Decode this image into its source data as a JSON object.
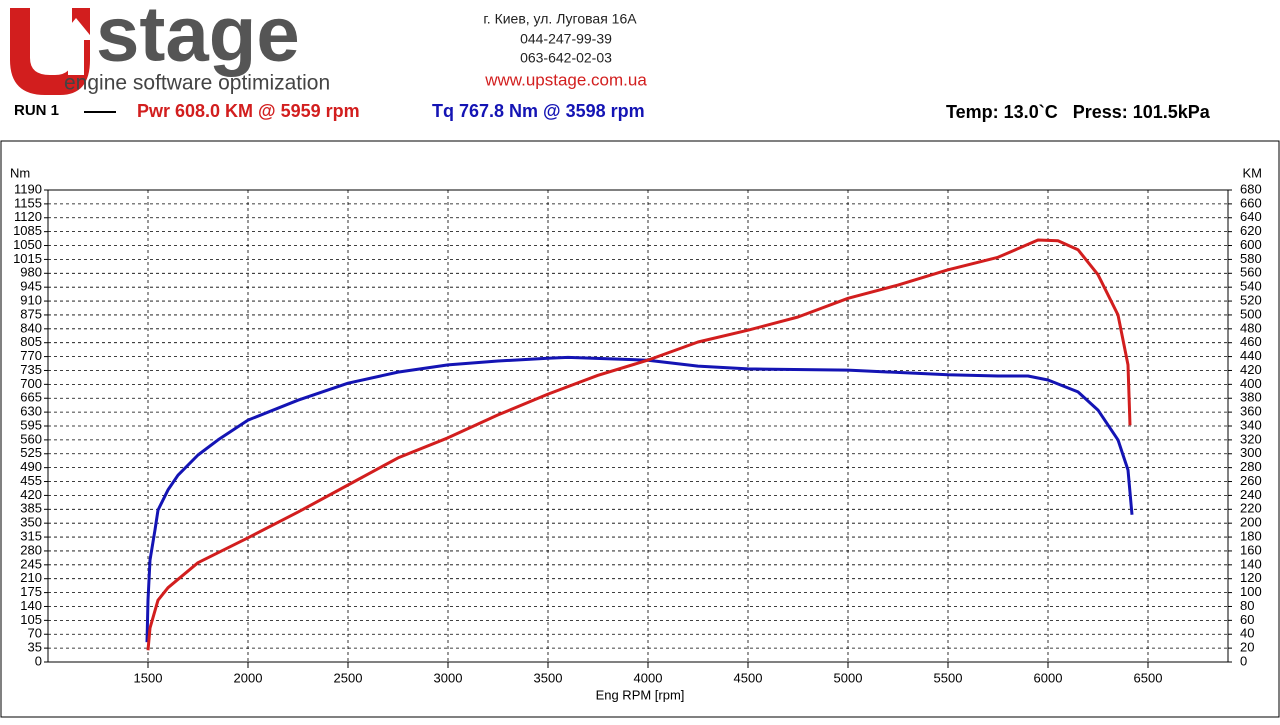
{
  "header": {
    "logo": "stage",
    "tagline": "engine software optimization",
    "address": "г. Киев, ул. Луговая 16А",
    "phone1": "044-247-99-39",
    "phone2": "063-642-02-03",
    "website": "www.upstage.com.ua",
    "run": "RUN 1",
    "power": "Pwr  608.0 KM @ 5959 rpm",
    "torque": "Tq 767.8 Nm @ 3598 rpm",
    "conditions": "Temp: 13.0`C   Press: 101.5kPa"
  },
  "chart_data": {
    "type": "line",
    "xlabel": "Eng RPM [rpm]",
    "ylabel": "Nm",
    "y2label": "KM",
    "xlim": [
      1000,
      6900
    ],
    "xticks": [
      1500,
      2000,
      2500,
      3000,
      3500,
      4000,
      4500,
      5000,
      5500,
      6000,
      6500
    ],
    "ylim": [
      0,
      1190
    ],
    "yticks": [
      0,
      35,
      70,
      105,
      140,
      175,
      210,
      245,
      280,
      315,
      350,
      385,
      420,
      455,
      490,
      525,
      560,
      595,
      630,
      665,
      700,
      735,
      770,
      805,
      840,
      875,
      910,
      945,
      980,
      1015,
      1050,
      1085,
      1120,
      1155,
      1190
    ],
    "y2lim": [
      0,
      680
    ],
    "y2ticks": [
      0,
      20,
      40,
      60,
      80,
      100,
      120,
      140,
      160,
      180,
      200,
      220,
      240,
      260,
      280,
      300,
      320,
      340,
      360,
      380,
      400,
      420,
      440,
      460,
      480,
      500,
      520,
      540,
      560,
      580,
      600,
      620,
      640,
      660,
      680
    ],
    "grid": true,
    "series": [
      {
        "color": "#1414b4",
        "axis": "y",
        "x": [
          1495,
          1500,
          1510,
          1535,
          1550,
          1600,
          1650,
          1750,
          1850,
          2000,
          2250,
          2500,
          2750,
          3000,
          3250,
          3500,
          3600,
          4000,
          4250,
          4500,
          5000,
          5500,
          5750,
          5900,
          6000,
          6150,
          6250,
          6350,
          6400,
          6420
        ],
        "values": [
          50,
          156,
          257,
          333,
          383,
          434,
          471,
          522,
          560,
          610,
          660,
          703,
          731,
          749,
          759,
          766,
          768,
          761,
          746,
          739,
          736,
          724,
          721,
          721,
          711,
          681,
          635,
          560,
          484,
          371
        ]
      },
      {
        "color": "#d21e1e",
        "axis": "y2",
        "x": [
          1500,
          1510,
          1550,
          1600,
          1750,
          2000,
          2250,
          2500,
          2750,
          3000,
          3250,
          3500,
          3750,
          4000,
          4250,
          4500,
          4750,
          5000,
          5250,
          5500,
          5750,
          5950,
          6050,
          6150,
          6250,
          6350,
          6400,
          6410
        ],
        "values": [
          17,
          49,
          89,
          107,
          143,
          179,
          216,
          255,
          294,
          323,
          356,
          386,
          413,
          435,
          461,
          478,
          497,
          524,
          543,
          565,
          583,
          608,
          607,
          594,
          558,
          500,
          428,
          341
        ]
      }
    ]
  }
}
